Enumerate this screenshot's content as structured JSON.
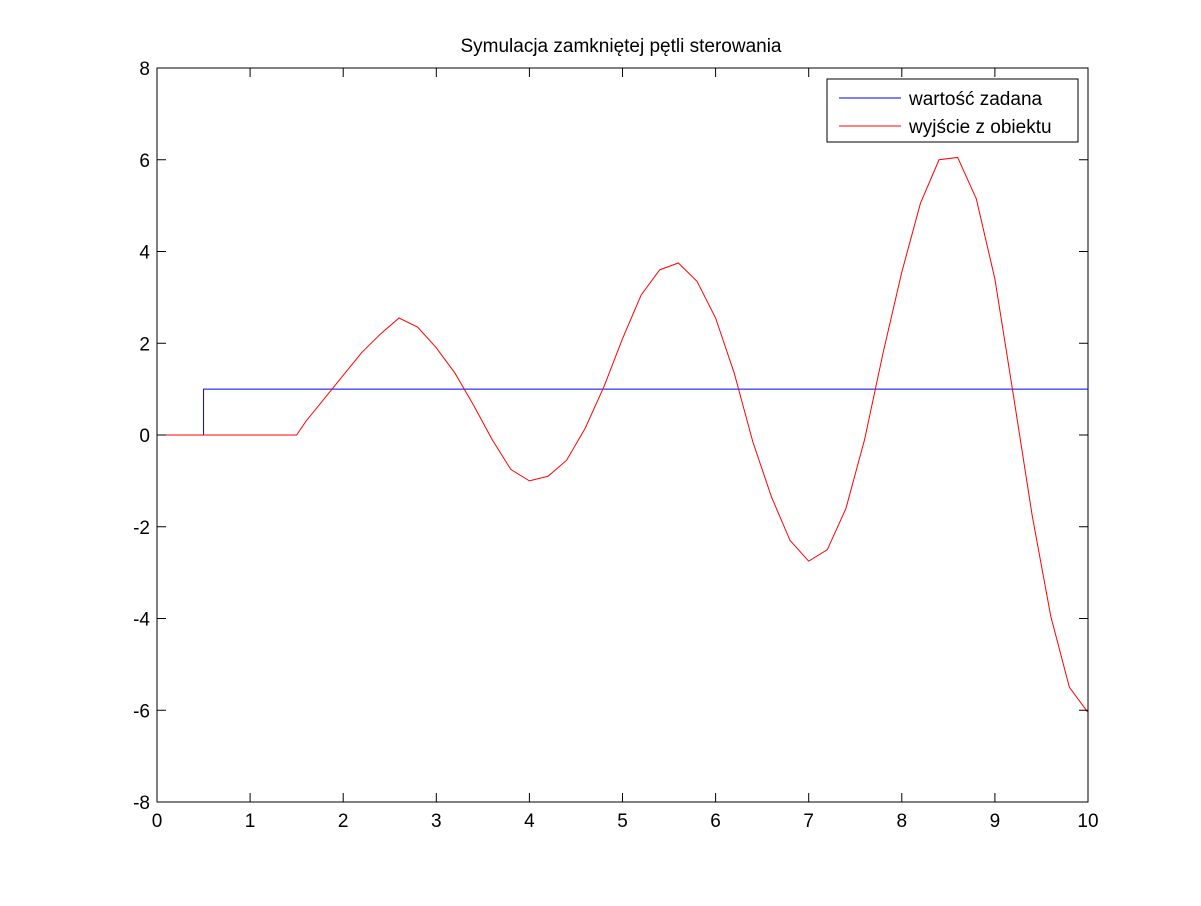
{
  "chart_data": {
    "type": "line",
    "title": "Symulacja zamkniętej pętli sterowania",
    "xlabel": "",
    "ylabel": "",
    "xlim": [
      0,
      10
    ],
    "ylim": [
      -8,
      8
    ],
    "grid": false,
    "legend_position": "top-right",
    "x_ticks": [
      "0",
      "1",
      "2",
      "3",
      "4",
      "5",
      "6",
      "7",
      "8",
      "9",
      "10"
    ],
    "y_ticks": [
      "8",
      "6",
      "4",
      "2",
      "0",
      "-2",
      "-4",
      "-6",
      "-8"
    ],
    "x_tick_values": [
      0,
      1,
      2,
      3,
      4,
      5,
      6,
      7,
      8,
      9,
      10
    ],
    "y_tick_values": [
      8,
      6,
      4,
      2,
      0,
      -2,
      -4,
      -6,
      -8
    ],
    "series": [
      {
        "name": "wartość zadana",
        "color": "#0000ff",
        "x": [
          0,
          0.5,
          0.5,
          10
        ],
        "y": [
          0,
          0,
          1,
          1
        ]
      },
      {
        "name": "wyjście z obiektu",
        "color": "#ff0000",
        "x": [
          0,
          1.0,
          1.5,
          1.6,
          1.8,
          2.0,
          2.2,
          2.4,
          2.6,
          2.8,
          3.0,
          3.2,
          3.4,
          3.6,
          3.8,
          4.0,
          4.2,
          4.4,
          4.6,
          4.8,
          5.0,
          5.2,
          5.4,
          5.6,
          5.8,
          6.0,
          6.2,
          6.4,
          6.6,
          6.8,
          7.0,
          7.2,
          7.4,
          7.6,
          7.8,
          8.0,
          8.2,
          8.4,
          8.6,
          8.8,
          9.0,
          9.2,
          9.4,
          9.6,
          9.8,
          10.0
        ],
        "y": [
          0,
          0,
          0,
          0.3,
          0.8,
          1.3,
          1.8,
          2.2,
          2.55,
          2.35,
          1.9,
          1.35,
          0.65,
          -0.1,
          -0.75,
          -1.0,
          -0.9,
          -0.55,
          0.15,
          1.05,
          2.1,
          3.05,
          3.6,
          3.75,
          3.35,
          2.55,
          1.35,
          -0.15,
          -1.35,
          -2.3,
          -2.75,
          -2.5,
          -1.6,
          -0.1,
          1.8,
          3.55,
          5.05,
          6.0,
          6.05,
          5.15,
          3.4,
          0.85,
          -1.75,
          -3.95,
          -5.5,
          -6.05
        ]
      }
    ]
  }
}
